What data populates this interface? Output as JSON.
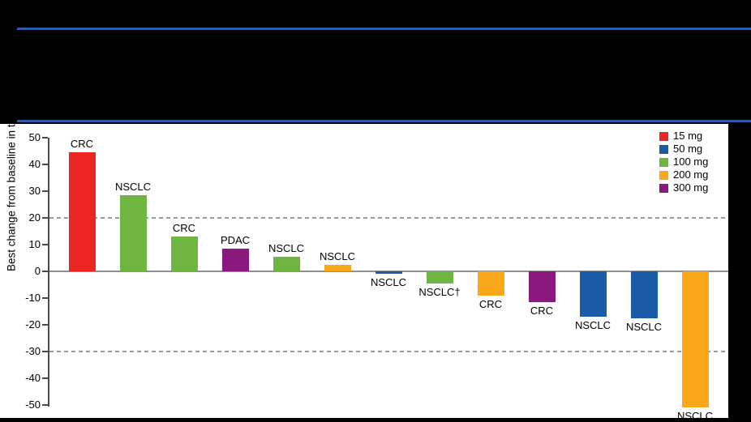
{
  "header": {
    "background": "#000000",
    "rule_color": "#2b5ca8"
  },
  "chart_data": {
    "type": "bar",
    "variant": "waterfall",
    "title": "",
    "ylabel": "Best change from baseline in target lesion (%)",
    "ylim": [
      -50,
      50
    ],
    "yticks": [
      50,
      40,
      30,
      20,
      10,
      0,
      -10,
      -20,
      -30,
      -40,
      -50
    ],
    "reference_lines": [
      20,
      -30
    ],
    "grid": false,
    "legend_position": "top-right",
    "legend": [
      {
        "label": "15 mg",
        "color": "#ec2723"
      },
      {
        "label": "50 mg",
        "color": "#1a5ca8"
      },
      {
        "label": "100 mg",
        "color": "#6fb542"
      },
      {
        "label": "200 mg",
        "color": "#faa71b"
      },
      {
        "label": "300 mg",
        "color": "#8a197e"
      }
    ],
    "bars": [
      {
        "label": "CRC",
        "value": 44.5,
        "dose": "15 mg"
      },
      {
        "label": "NSCLC",
        "value": 28.5,
        "dose": "100 mg"
      },
      {
        "label": "CRC",
        "value": 13,
        "dose": "100 mg"
      },
      {
        "label": "PDAC",
        "value": 8.5,
        "dose": "300 mg"
      },
      {
        "label": "NSCLC",
        "value": 5.5,
        "dose": "100 mg"
      },
      {
        "label": "NSCLC",
        "value": 2.5,
        "dose": "200 mg"
      },
      {
        "label": "NSCLC",
        "value": -1,
        "dose": "50 mg"
      },
      {
        "label": "NSCLC†",
        "value": -4.5,
        "dose": "100 mg"
      },
      {
        "label": "CRC",
        "value": -9,
        "dose": "200 mg"
      },
      {
        "label": "CRC",
        "value": -11.5,
        "dose": "300 mg"
      },
      {
        "label": "NSCLC",
        "value": -17,
        "dose": "50 mg"
      },
      {
        "label": "NSCLC",
        "value": -17.5,
        "dose": "50 mg"
      },
      {
        "label": "NSCLC",
        "value": -51,
        "dose": "200 mg"
      }
    ]
  }
}
